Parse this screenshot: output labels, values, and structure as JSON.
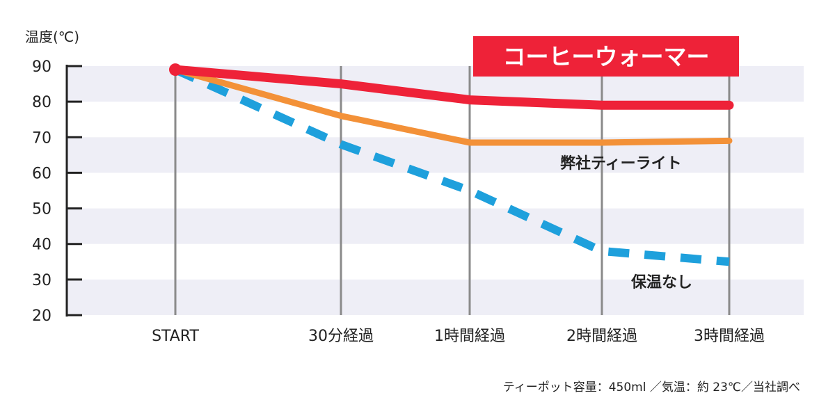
{
  "chart_data": {
    "type": "line",
    "ylabel": "温度(℃)",
    "categories": [
      "START",
      "30分経過",
      "1時間経過",
      "2時間経過",
      "3時間経過"
    ],
    "ylim": [
      20,
      90
    ],
    "yticks": [
      90,
      80,
      70,
      60,
      50,
      40,
      30,
      20
    ],
    "series": [
      {
        "name": "コーヒーウォーマー",
        "values": [
          89,
          85,
          80.5,
          79,
          79
        ],
        "color": "#ee2238",
        "style": "solid",
        "label_style": "badge"
      },
      {
        "name": "弊社ティーライト",
        "values": [
          89,
          76,
          68.5,
          68.5,
          69
        ],
        "color": "#f39138",
        "style": "solid"
      },
      {
        "name": "保温なし",
        "values": [
          89,
          68,
          55,
          38,
          35
        ],
        "color": "#1ea0dc",
        "style": "dashed"
      }
    ],
    "grid": "horizontal bands with vertical lines at categories",
    "legend": "inline labels beside lines",
    "footnote": "ティーポット容量：450ml ／気温：約 23℃／当社調べ"
  }
}
